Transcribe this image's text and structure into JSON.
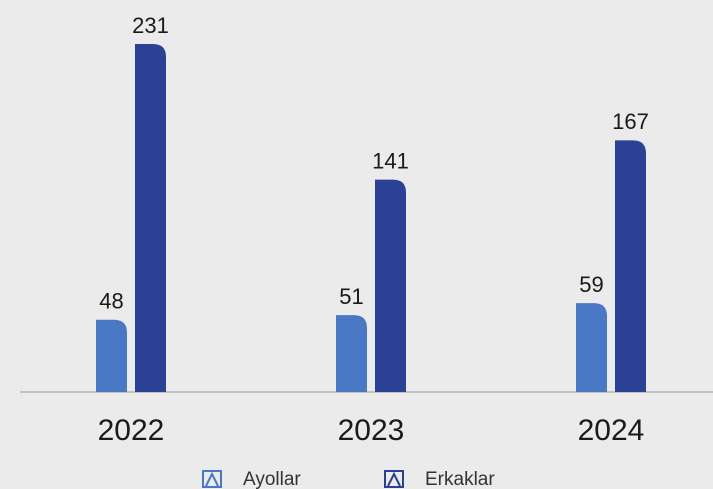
{
  "chart_data": {
    "type": "bar",
    "categories": [
      "2022",
      "2023",
      "2024"
    ],
    "series": [
      {
        "name": "Ayollar",
        "color": "#4a78c4",
        "values": [
          48,
          51,
          59
        ]
      },
      {
        "name": "Erkaklar",
        "color": "#2b4193",
        "values": [
          231,
          141,
          167
        ]
      }
    ]
  }
}
